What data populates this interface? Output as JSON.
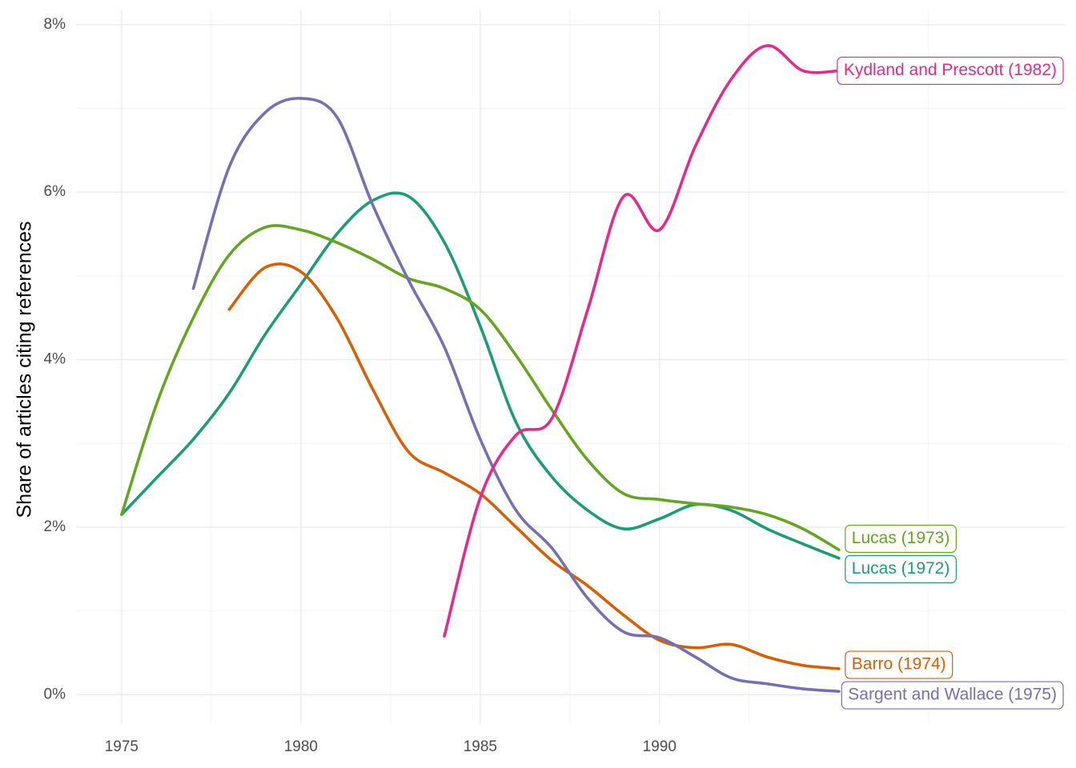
{
  "chart_data": {
    "type": "line",
    "y_label": "Share of articles citing references",
    "xlim": [
      1973.73,
      2001.3
    ],
    "ylim": [
      -0.35,
      8.18
    ],
    "xticks": [
      1975,
      1980,
      1985,
      1990
    ],
    "yticks": [
      {
        "value": 0,
        "label": "0%"
      },
      {
        "value": 2,
        "label": "2%"
      },
      {
        "value": 4,
        "label": "4%"
      },
      {
        "value": 6,
        "label": "6%"
      },
      {
        "value": 8,
        "label": "8%"
      }
    ],
    "grid": true,
    "series": [
      {
        "name": "Lucas (1972)",
        "color": "#1b9e77",
        "x": [
          1975,
          1976,
          1977,
          1978,
          1979,
          1980,
          1981,
          1982,
          1983,
          1984,
          1985,
          1986,
          1987,
          1988,
          1989,
          1990,
          1991,
          1992,
          1993,
          1994,
          1995
        ],
        "values": [
          2.15,
          2.6,
          3.05,
          3.6,
          4.3,
          4.9,
          5.5,
          5.9,
          5.95,
          5.4,
          4.4,
          3.25,
          2.6,
          2.2,
          1.98,
          2.1,
          2.27,
          2.2,
          1.98,
          1.8,
          1.63
        ]
      },
      {
        "name": "Lucas (1973)",
        "color": "#66a61e",
        "x": [
          1975,
          1976,
          1977,
          1978,
          1979,
          1980,
          1981,
          1982,
          1983,
          1984,
          1985,
          1986,
          1987,
          1988,
          1989,
          1990,
          1991,
          1992,
          1993,
          1994,
          1995
        ],
        "values": [
          2.15,
          3.5,
          4.5,
          5.25,
          5.58,
          5.55,
          5.4,
          5.2,
          4.97,
          4.85,
          4.6,
          4.05,
          3.4,
          2.8,
          2.4,
          2.33,
          2.28,
          2.24,
          2.15,
          1.98,
          1.73
        ]
      },
      {
        "name": "Barro (1974)",
        "color": "#d95f02",
        "x": [
          1978,
          1979,
          1980,
          1981,
          1982,
          1983,
          1984,
          1985,
          1986,
          1987,
          1988,
          1989,
          1990,
          1991,
          1992,
          1993,
          1994,
          1995
        ],
        "values": [
          4.6,
          5.1,
          5.05,
          4.5,
          3.65,
          2.9,
          2.65,
          2.4,
          2.0,
          1.6,
          1.3,
          0.95,
          0.65,
          0.56,
          0.6,
          0.45,
          0.35,
          0.31
        ]
      },
      {
        "name": "Sargent and Wallace (1975)",
        "color": "#7570b3",
        "x": [
          1977,
          1978,
          1979,
          1980,
          1981,
          1982,
          1983,
          1984,
          1985,
          1986,
          1987,
          1988,
          1989,
          1990,
          1991,
          1992,
          1993,
          1994,
          1995
        ],
        "values": [
          4.85,
          6.3,
          6.95,
          7.12,
          6.9,
          5.85,
          4.95,
          4.15,
          3.05,
          2.2,
          1.75,
          1.15,
          0.75,
          0.68,
          0.45,
          0.2,
          0.13,
          0.07,
          0.04
        ]
      },
      {
        "name": "Kydland and Prescott (1982)",
        "color": "#e7298a",
        "x": [
          1984,
          1985,
          1986,
          1987,
          1988,
          1989,
          1990,
          1991,
          1992,
          1993,
          1994,
          1995
        ],
        "values": [
          0.7,
          2.35,
          3.1,
          3.3,
          4.6,
          5.95,
          5.55,
          6.55,
          7.35,
          7.75,
          7.45,
          7.45
        ]
      }
    ]
  }
}
